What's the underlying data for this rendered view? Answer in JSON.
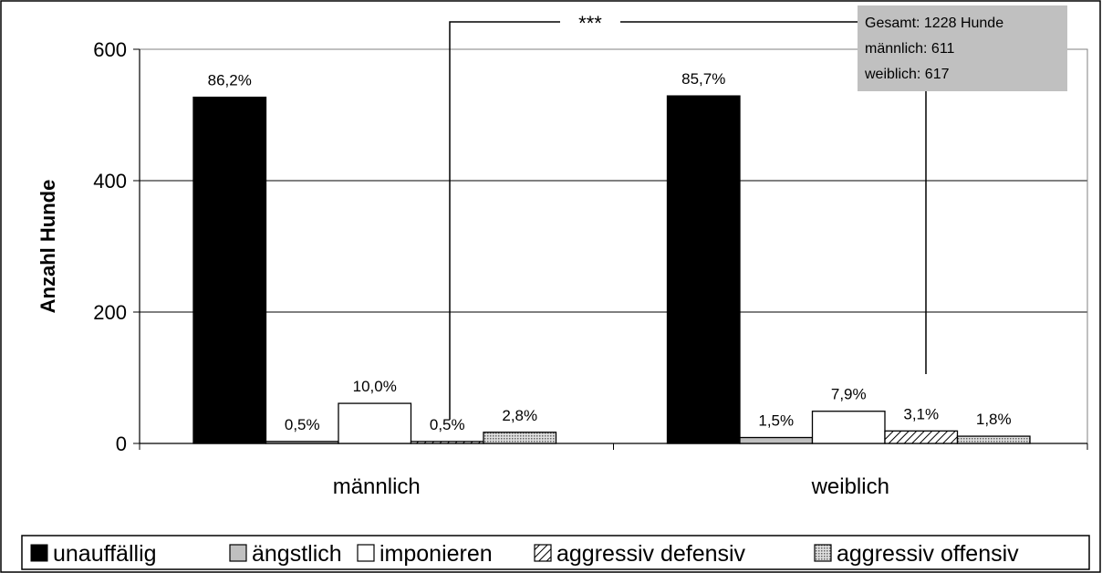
{
  "chart_data": {
    "type": "bar",
    "ylabel": "Anzahl Hunde",
    "ylim": [
      0,
      600
    ],
    "yticks": [
      "0",
      "200",
      "400",
      "600"
    ],
    "categories": [
      "männlich",
      "weiblich"
    ],
    "series": [
      {
        "name": "unauffällig",
        "values": [
          527,
          529
        ],
        "labels": [
          "86,2%",
          "85,7%"
        ],
        "color": "#000000",
        "pattern": "solid"
      },
      {
        "name": "ängstlich",
        "values": [
          3,
          9
        ],
        "labels": [
          "0,5%",
          "1,5%"
        ],
        "color": "#c0c0c0",
        "pattern": "solid"
      },
      {
        "name": "imponieren",
        "values": [
          61,
          49
        ],
        "labels": [
          "10,0%",
          "7,9%"
        ],
        "color": "#ffffff",
        "pattern": "solid"
      },
      {
        "name": "aggressiv defensiv",
        "values": [
          3,
          19
        ],
        "labels": [
          "0,5%",
          "3,1%"
        ],
        "color": "#ffffff",
        "pattern": "diagonal-hatch"
      },
      {
        "name": "aggressiv offensiv",
        "values": [
          17,
          11
        ],
        "labels": [
          "2,8%",
          "1,8%"
        ],
        "color": "#c8c8c8",
        "pattern": "dotted"
      }
    ],
    "grid": true,
    "legend_position": "bottom",
    "annotation_box": {
      "lines": [
        "Gesamt: 1228  Hunde",
        "männlich: 611",
        "weiblich: 617"
      ],
      "background": "#c0c0c0"
    },
    "significance": "***"
  }
}
